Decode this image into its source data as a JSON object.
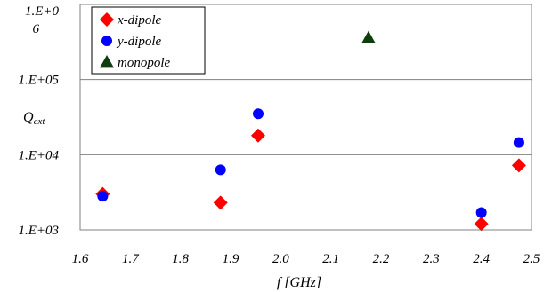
{
  "chart_data": {
    "type": "scatter",
    "xlabel": "f [GHz]",
    "ylabel": "Q",
    "ylabel_sub": "ext",
    "xlim": [
      1.6,
      2.5
    ],
    "ylim": [
      1000,
      1000000
    ],
    "yscale": "log",
    "x_ticks": [
      "1.6",
      "1.7",
      "1.8",
      "1.9",
      "2.0",
      "2.1",
      "2.2",
      "2.3",
      "2.4",
      "2.5"
    ],
    "y_ticks": [
      {
        "value": 1000,
        "label": "1.E+03"
      },
      {
        "value": 10000,
        "label": "1.E+04"
      },
      {
        "value": 100000,
        "label": "1.E+05"
      },
      {
        "value": 1000000,
        "label_line1": "1.E+0",
        "label_line2": "6"
      }
    ],
    "grid": "horizontal",
    "legend_position": "top-left",
    "series": [
      {
        "name": "x-dipole",
        "marker": "diamond",
        "color": "#ff0000",
        "points": [
          {
            "x": 1.645,
            "y": 3000
          },
          {
            "x": 1.88,
            "y": 2300
          },
          {
            "x": 1.955,
            "y": 18000
          },
          {
            "x": 2.4,
            "y": 1200
          },
          {
            "x": 2.475,
            "y": 7200
          }
        ]
      },
      {
        "name": "y-dipole",
        "marker": "circle",
        "color": "#0000ff",
        "points": [
          {
            "x": 1.645,
            "y": 2800
          },
          {
            "x": 1.88,
            "y": 6300
          },
          {
            "x": 1.955,
            "y": 35000
          },
          {
            "x": 2.4,
            "y": 1700
          },
          {
            "x": 2.475,
            "y": 14500
          }
        ]
      },
      {
        "name": "monopole",
        "marker": "triangle",
        "color": "#0f3d0f",
        "points": [
          {
            "x": 2.175,
            "y": 360000
          }
        ]
      }
    ]
  }
}
